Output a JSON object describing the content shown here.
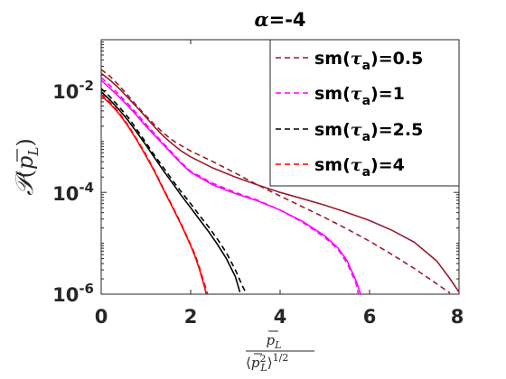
{
  "chart_data": {
    "type": "line",
    "title": "α=-4",
    "xlabel": "p̄_L / ⟨p̄_L²⟩^(1/2)",
    "ylabel": "𝒫(p̄_L)",
    "xlim": [
      0,
      8
    ],
    "ylim": [
      1e-06,
      0.1
    ],
    "yscale": "log",
    "xticks": [
      "0",
      "2",
      "4",
      "6",
      "8"
    ],
    "yticks": [
      "10-6",
      "10-4",
      "10-2"
    ],
    "legend_position": "top-right",
    "series": [
      {
        "name": "sm(τa)=0.5",
        "color": "#9b1b30",
        "solid": [
          [
            0,
            0.022
          ],
          [
            0.2,
            0.016
          ],
          [
            0.4,
            0.011
          ],
          [
            0.6,
            0.0072
          ],
          [
            0.8,
            0.0047
          ],
          [
            1.0,
            0.003
          ],
          [
            1.2,
            0.0019
          ],
          [
            1.4,
            0.00125
          ],
          [
            1.6,
            0.00088
          ],
          [
            1.8,
            0.00064
          ],
          [
            2.0,
            0.0005
          ],
          [
            2.5,
            0.0003
          ],
          [
            3.0,
            0.0002
          ],
          [
            3.5,
            0.00014
          ],
          [
            4.0,
            0.0001
          ],
          [
            4.5,
            7.5e-05
          ],
          [
            5.0,
            5.6e-05
          ],
          [
            5.5,
            4e-05
          ],
          [
            6.0,
            2.8e-05
          ],
          [
            6.5,
            1.8e-05
          ],
          [
            7.0,
            1.05e-05
          ],
          [
            7.5,
            4.5e-06
          ],
          [
            7.8,
            2e-06
          ],
          [
            8.0,
            1.1e-06
          ]
        ],
        "dashed": [
          [
            0,
            0.026
          ],
          [
            0.2,
            0.019
          ],
          [
            0.4,
            0.0125
          ],
          [
            0.6,
            0.008
          ],
          [
            0.8,
            0.005
          ],
          [
            1.0,
            0.0032
          ],
          [
            1.2,
            0.0021
          ],
          [
            1.4,
            0.00145
          ],
          [
            1.6,
            0.00105
          ],
          [
            1.8,
            0.00082
          ],
          [
            2.0,
            0.00065
          ],
          [
            2.5,
            0.0004
          ],
          [
            3.0,
            0.00024
          ],
          [
            3.5,
            0.00014
          ],
          [
            4.0,
            8.5e-05
          ],
          [
            4.5,
            5.2e-05
          ],
          [
            5.0,
            3.2e-05
          ],
          [
            5.5,
            1.9e-05
          ],
          [
            6.0,
            1.1e-05
          ],
          [
            6.5,
            6e-06
          ],
          [
            7.0,
            3.2e-06
          ],
          [
            7.5,
            1.6e-06
          ],
          [
            7.8,
            1.05e-06
          ]
        ]
      },
      {
        "name": "sm(τa)=1",
        "color": "#ff00ff",
        "solid": [
          [
            0,
            0.016
          ],
          [
            0.2,
            0.011
          ],
          [
            0.4,
            0.0075
          ],
          [
            0.6,
            0.005
          ],
          [
            0.8,
            0.0032
          ],
          [
            1.0,
            0.002
          ],
          [
            1.2,
            0.0013
          ],
          [
            1.4,
            0.00085
          ],
          [
            1.6,
            0.00055
          ],
          [
            1.8,
            0.00036
          ],
          [
            2.0,
            0.00025
          ],
          [
            2.5,
            0.00014
          ],
          [
            3.0,
            9.5e-05
          ],
          [
            3.5,
            6.8e-05
          ],
          [
            4.0,
            4.5e-05
          ],
          [
            4.5,
            2.7e-05
          ],
          [
            5.0,
            1.4e-05
          ],
          [
            5.3,
            8e-06
          ],
          [
            5.5,
            4.5e-06
          ],
          [
            5.7,
            1.8e-06
          ],
          [
            5.8,
            1e-06
          ]
        ],
        "dashed": [
          [
            0,
            0.018
          ],
          [
            0.2,
            0.0125
          ],
          [
            0.4,
            0.0083
          ],
          [
            0.6,
            0.0055
          ],
          [
            0.8,
            0.0035
          ],
          [
            1.0,
            0.0022
          ],
          [
            1.2,
            0.0014
          ],
          [
            1.4,
            0.0009
          ],
          [
            1.6,
            0.00058
          ],
          [
            1.8,
            0.00038
          ],
          [
            2.0,
            0.00026
          ],
          [
            2.5,
            0.00015
          ],
          [
            3.0,
            0.0001
          ],
          [
            3.5,
            7e-05
          ],
          [
            4.0,
            4.5e-05
          ],
          [
            4.5,
            2.6e-05
          ],
          [
            5.0,
            1.3e-05
          ],
          [
            5.3,
            7.5e-06
          ],
          [
            5.5,
            4e-06
          ],
          [
            5.7,
            1.6e-06
          ],
          [
            5.75,
            1e-06
          ]
        ]
      },
      {
        "name": "sm(τa)=2.5",
        "color": "#000000",
        "solid": [
          [
            0,
            0.0095
          ],
          [
            0.2,
            0.0065
          ],
          [
            0.4,
            0.0042
          ],
          [
            0.6,
            0.0026
          ],
          [
            0.8,
            0.0015
          ],
          [
            1.0,
            0.00085
          ],
          [
            1.2,
            0.00047
          ],
          [
            1.4,
            0.00026
          ],
          [
            1.6,
            0.00015
          ],
          [
            1.8,
            8.5e-05
          ],
          [
            2.0,
            5e-05
          ],
          [
            2.2,
            2.9e-05
          ],
          [
            2.4,
            1.7e-05
          ],
          [
            2.6,
            9.5e-06
          ],
          [
            2.8,
            5e-06
          ],
          [
            3.0,
            2.2e-06
          ],
          [
            3.1,
            1.1e-06
          ]
        ],
        "dashed": [
          [
            0,
            0.011
          ],
          [
            0.2,
            0.0075
          ],
          [
            0.4,
            0.0048
          ],
          [
            0.6,
            0.003
          ],
          [
            0.8,
            0.0017
          ],
          [
            1.0,
            0.00095
          ],
          [
            1.2,
            0.00052
          ],
          [
            1.4,
            0.0003
          ],
          [
            1.6,
            0.00017
          ],
          [
            1.8,
            0.0001
          ],
          [
            2.0,
            6e-05
          ],
          [
            2.2,
            3.5e-05
          ],
          [
            2.4,
            2.1e-05
          ],
          [
            2.6,
            1.2e-05
          ],
          [
            2.8,
            6.5e-06
          ],
          [
            3.0,
            3e-06
          ],
          [
            3.15,
            1.5e-06
          ],
          [
            3.25,
            1e-06
          ]
        ]
      },
      {
        "name": "sm(τa)=4",
        "color": "#ff0000",
        "solid": [
          [
            0,
            0.008
          ],
          [
            0.2,
            0.0055
          ],
          [
            0.4,
            0.0035
          ],
          [
            0.6,
            0.002
          ],
          [
            0.8,
            0.00105
          ],
          [
            1.0,
            0.00052
          ],
          [
            1.2,
            0.00025
          ],
          [
            1.4,
            0.00011
          ],
          [
            1.6,
            5e-05
          ],
          [
            1.8,
            2.2e-05
          ],
          [
            2.0,
            9e-06
          ],
          [
            2.1,
            5.5e-06
          ],
          [
            2.2,
            3e-06
          ],
          [
            2.3,
            1.5e-06
          ],
          [
            2.35,
            1e-06
          ]
        ],
        "dashed": [
          [
            0,
            0.0085
          ],
          [
            0.2,
            0.0058
          ],
          [
            0.4,
            0.0037
          ],
          [
            0.6,
            0.0021
          ],
          [
            0.8,
            0.0011
          ],
          [
            1.0,
            0.00055
          ],
          [
            1.2,
            0.00026
          ],
          [
            1.4,
            0.000115
          ],
          [
            1.6,
            5.2e-05
          ],
          [
            1.8,
            2.3e-05
          ],
          [
            2.0,
            9.5e-06
          ],
          [
            2.1,
            6e-06
          ],
          [
            2.2,
            3.3e-06
          ],
          [
            2.3,
            1.7e-06
          ],
          [
            2.38,
            1e-06
          ]
        ]
      }
    ]
  }
}
